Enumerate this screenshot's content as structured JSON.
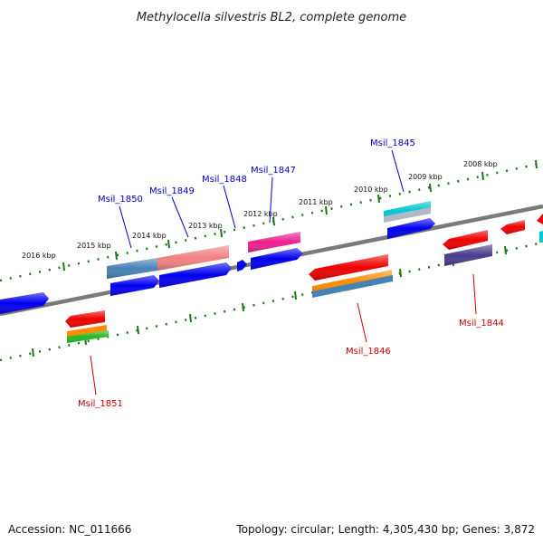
{
  "title": "Methylocella silvestris BL2, complete genome",
  "footer": {
    "accession": "Accession: NC_011666",
    "summary": "Topology: circular; Length: 4,305,430 bp; Genes: 3,872"
  },
  "scale_labels": [
    "2008 kbp",
    "2009 kbp",
    "2010 kbp",
    "2011 kbp",
    "2012 kbp",
    "2013 kbp",
    "2014 kbp",
    "2015 kbp",
    "2016 kbp"
  ],
  "gene_labels": {
    "top": [
      "Msil_1845",
      "Msil_1847",
      "Msil_1848",
      "Msil_1849",
      "Msil_1850"
    ],
    "bottom": [
      "Msil_1844",
      "Msil_1846",
      "Msil_1851"
    ]
  },
  "colors": {
    "backbone": "#7a7a7a",
    "tick": "#1a7a1a",
    "top_label": "#0000cc",
    "bottom_label": "#cc0000",
    "gene_blue": "#0000ee",
    "gene_red": "#ee0000",
    "gene_pink": "#ee2090",
    "gene_steel": "#4682b4",
    "gene_salmon": "#f08080",
    "gene_cyan": "#00c8d0",
    "gene_orange": "#ff8c00",
    "gene_green": "#22bb22",
    "gene_slate": "#483d8b"
  }
}
